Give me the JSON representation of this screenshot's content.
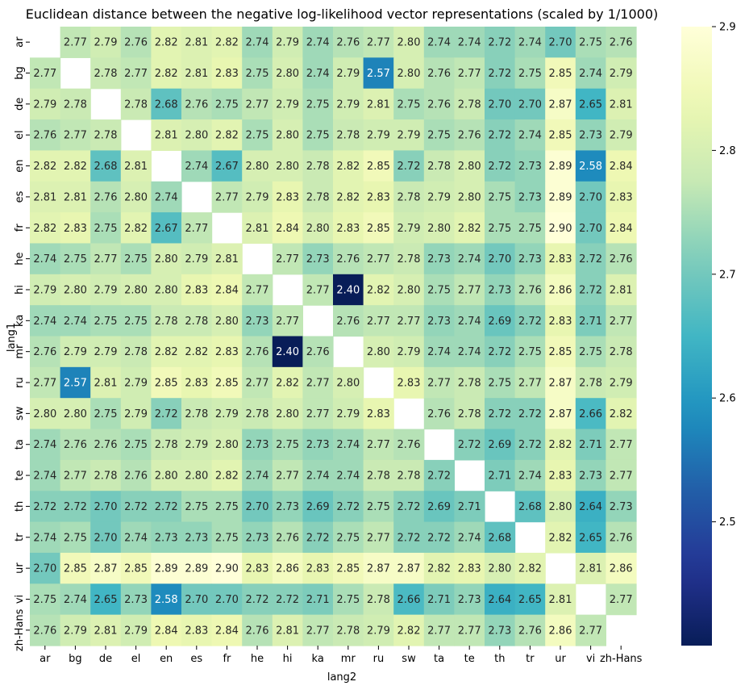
{
  "chart_data": {
    "type": "heatmap",
    "title": "Euclidean distance between the negative log-likelihood vector representations (scaled by 1/1000)",
    "xlabel": "lang2",
    "ylabel": "lang1",
    "x_categories": [
      "ar",
      "bg",
      "de",
      "el",
      "en",
      "es",
      "fr",
      "he",
      "hi",
      "ka",
      "mr",
      "ru",
      "sw",
      "ta",
      "te",
      "th",
      "tr",
      "ur",
      "vi",
      "zh-Hans"
    ],
    "y_categories": [
      "ar",
      "bg",
      "de",
      "el",
      "en",
      "es",
      "fr",
      "he",
      "hi",
      "ka",
      "mr",
      "ru",
      "sw",
      "ta",
      "te",
      "th",
      "tr",
      "ur",
      "vi",
      "zh-Hans"
    ],
    "values": [
      [
        null,
        2.77,
        2.79,
        2.76,
        2.82,
        2.81,
        2.82,
        2.74,
        2.79,
        2.74,
        2.76,
        2.77,
        2.8,
        2.74,
        2.74,
        2.72,
        2.74,
        2.7,
        2.75,
        2.76
      ],
      [
        2.77,
        null,
        2.78,
        2.77,
        2.82,
        2.81,
        2.83,
        2.75,
        2.8,
        2.74,
        2.79,
        2.57,
        2.8,
        2.76,
        2.77,
        2.72,
        2.75,
        2.85,
        2.74,
        2.79
      ],
      [
        2.79,
        2.78,
        null,
        2.78,
        2.68,
        2.76,
        2.75,
        2.77,
        2.79,
        2.75,
        2.79,
        2.81,
        2.75,
        2.76,
        2.78,
        2.7,
        2.7,
        2.87,
        2.65,
        2.81
      ],
      [
        2.76,
        2.77,
        2.78,
        null,
        2.81,
        2.8,
        2.82,
        2.75,
        2.8,
        2.75,
        2.78,
        2.79,
        2.79,
        2.75,
        2.76,
        2.72,
        2.74,
        2.85,
        2.73,
        2.79
      ],
      [
        2.82,
        2.82,
        2.68,
        2.81,
        null,
        2.74,
        2.67,
        2.8,
        2.8,
        2.78,
        2.82,
        2.85,
        2.72,
        2.78,
        2.8,
        2.72,
        2.73,
        2.89,
        2.58,
        2.84
      ],
      [
        2.81,
        2.81,
        2.76,
        2.8,
        2.74,
        null,
        2.77,
        2.79,
        2.83,
        2.78,
        2.82,
        2.83,
        2.78,
        2.79,
        2.8,
        2.75,
        2.73,
        2.89,
        2.7,
        2.83
      ],
      [
        2.82,
        2.83,
        2.75,
        2.82,
        2.67,
        2.77,
        null,
        2.81,
        2.84,
        2.8,
        2.83,
        2.85,
        2.79,
        2.8,
        2.82,
        2.75,
        2.75,
        2.9,
        2.7,
        2.84
      ],
      [
        2.74,
        2.75,
        2.77,
        2.75,
        2.8,
        2.79,
        2.81,
        null,
        2.77,
        2.73,
        2.76,
        2.77,
        2.78,
        2.73,
        2.74,
        2.7,
        2.73,
        2.83,
        2.72,
        2.76
      ],
      [
        2.79,
        2.8,
        2.79,
        2.8,
        2.8,
        2.83,
        2.84,
        2.77,
        null,
        2.77,
        2.4,
        2.82,
        2.8,
        2.75,
        2.77,
        2.73,
        2.76,
        2.86,
        2.72,
        2.81
      ],
      [
        2.74,
        2.74,
        2.75,
        2.75,
        2.78,
        2.78,
        2.8,
        2.73,
        2.77,
        null,
        2.76,
        2.77,
        2.77,
        2.73,
        2.74,
        2.69,
        2.72,
        2.83,
        2.71,
        2.77
      ],
      [
        2.76,
        2.79,
        2.79,
        2.78,
        2.82,
        2.82,
        2.83,
        2.76,
        2.4,
        2.76,
        null,
        2.8,
        2.79,
        2.74,
        2.74,
        2.72,
        2.75,
        2.85,
        2.75,
        2.78
      ],
      [
        2.77,
        2.57,
        2.81,
        2.79,
        2.85,
        2.83,
        2.85,
        2.77,
        2.82,
        2.77,
        2.8,
        null,
        2.83,
        2.77,
        2.78,
        2.75,
        2.77,
        2.87,
        2.78,
        2.79
      ],
      [
        2.8,
        2.8,
        2.75,
        2.79,
        2.72,
        2.78,
        2.79,
        2.78,
        2.8,
        2.77,
        2.79,
        2.83,
        null,
        2.76,
        2.78,
        2.72,
        2.72,
        2.87,
        2.66,
        2.82
      ],
      [
        2.74,
        2.76,
        2.76,
        2.75,
        2.78,
        2.79,
        2.8,
        2.73,
        2.75,
        2.73,
        2.74,
        2.77,
        2.76,
        null,
        2.72,
        2.69,
        2.72,
        2.82,
        2.71,
        2.77
      ],
      [
        2.74,
        2.77,
        2.78,
        2.76,
        2.8,
        2.8,
        2.82,
        2.74,
        2.77,
        2.74,
        2.74,
        2.78,
        2.78,
        2.72,
        null,
        2.71,
        2.74,
        2.83,
        2.73,
        2.77
      ],
      [
        2.72,
        2.72,
        2.7,
        2.72,
        2.72,
        2.75,
        2.75,
        2.7,
        2.73,
        2.69,
        2.72,
        2.75,
        2.72,
        2.69,
        2.71,
        null,
        2.68,
        2.8,
        2.64,
        2.73
      ],
      [
        2.74,
        2.75,
        2.7,
        2.74,
        2.73,
        2.73,
        2.75,
        2.73,
        2.76,
        2.72,
        2.75,
        2.77,
        2.72,
        2.72,
        2.74,
        2.68,
        null,
        2.82,
        2.65,
        2.76
      ],
      [
        2.7,
        2.85,
        2.87,
        2.85,
        2.89,
        2.89,
        2.9,
        2.83,
        2.86,
        2.83,
        2.85,
        2.87,
        2.87,
        2.82,
        2.83,
        2.8,
        2.82,
        null,
        2.81,
        2.86
      ],
      [
        2.75,
        2.74,
        2.65,
        2.73,
        2.58,
        2.7,
        2.7,
        2.72,
        2.72,
        2.71,
        2.75,
        2.78,
        2.66,
        2.71,
        2.73,
        2.64,
        2.65,
        2.81,
        null,
        2.77
      ],
      [
        2.76,
        2.79,
        2.81,
        2.79,
        2.84,
        2.83,
        2.84,
        2.76,
        2.81,
        2.77,
        2.78,
        2.79,
        2.82,
        2.77,
        2.77,
        2.73,
        2.76,
        2.86,
        2.77,
        null
      ]
    ],
    "value_format": "2 decimals",
    "colormap": "YlGnBu_r",
    "vmin": 2.4,
    "vmax": 2.9,
    "colorbar_ticks": [
      2.5,
      2.6,
      2.7,
      2.8,
      2.9
    ],
    "diagonal": "blank"
  }
}
